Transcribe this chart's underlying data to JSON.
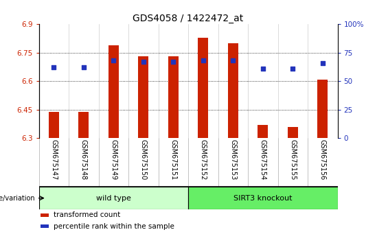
{
  "title": "GDS4058 / 1422472_at",
  "samples": [
    "GSM675147",
    "GSM675148",
    "GSM675149",
    "GSM675150",
    "GSM675151",
    "GSM675152",
    "GSM675153",
    "GSM675154",
    "GSM675155",
    "GSM675156"
  ],
  "transformed_count": [
    6.44,
    6.44,
    6.79,
    6.73,
    6.73,
    6.83,
    6.8,
    6.37,
    6.36,
    6.61
  ],
  "percentile_rank": [
    62,
    62,
    68,
    67,
    67,
    68,
    68,
    61,
    61,
    66
  ],
  "ylim": [
    6.3,
    6.9
  ],
  "yticks": [
    6.3,
    6.45,
    6.6,
    6.75,
    6.9
  ],
  "right_yticks": [
    0,
    25,
    50,
    75,
    100
  ],
  "right_ylim": [
    0,
    100
  ],
  "bar_color": "#cc2200",
  "dot_color": "#2233bb",
  "groups": [
    {
      "label": "wild type",
      "start": 0,
      "end": 4,
      "color": "#ccffcc"
    },
    {
      "label": "SIRT3 knockout",
      "start": 5,
      "end": 9,
      "color": "#66ee66"
    }
  ],
  "group_label_prefix": "genotype/variation",
  "legend_items": [
    {
      "color": "#cc2200",
      "label": "transformed count"
    },
    {
      "color": "#2233bb",
      "label": "percentile rank within the sample"
    }
  ],
  "bar_width": 0.35,
  "base_value": 6.3,
  "title_fontsize": 10,
  "tick_fontsize": 7.5,
  "sample_fontsize": 7,
  "group_fontsize": 8,
  "legend_fontsize": 7.5,
  "xlabel_bg_color": "#d8d8d8",
  "plot_bg_color": "#ffffff",
  "fig_bg_color": "#ffffff"
}
